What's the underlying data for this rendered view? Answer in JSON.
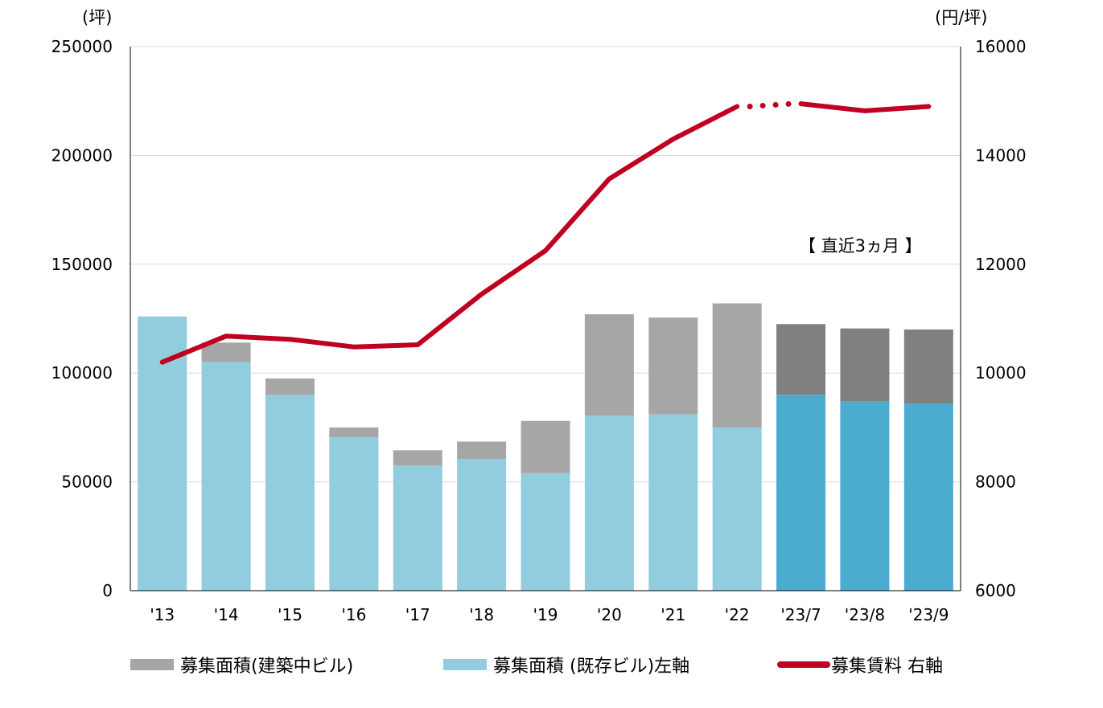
{
  "chart_data": {
    "type": "bar",
    "categories": [
      "'13",
      "'14",
      "'15",
      "'16",
      "'17",
      "'18",
      "'19",
      "'20",
      "'21",
      "'22",
      "'23/7",
      "'23/8",
      "'23/9"
    ],
    "left_axis": {
      "unit": "(坪)",
      "ylim": [
        0,
        250000
      ],
      "ticks": [
        "0",
        "50000",
        "100000",
        "150000",
        "200000",
        "250000"
      ]
    },
    "right_axis": {
      "unit": "(円/坪)",
      "ylim": [
        6000,
        16000
      ],
      "ticks": [
        "6000",
        "8000",
        "10000",
        "12000",
        "14000",
        "16000"
      ]
    },
    "annotation": "【 直近3ヵ月 】",
    "grid": true,
    "legend_position": "bottom",
    "series": [
      {
        "name": "募集面積(建築中ビル)",
        "kind": "bar-stacked",
        "axis": "left",
        "values": [
          0,
          9000,
          7500,
          4500,
          7000,
          8000,
          24000,
          46500,
          44500,
          57000,
          32500,
          33500,
          34000
        ],
        "color": "#a6a6a6",
        "recent_color": "#808080"
      },
      {
        "name": "募集面積 (既存ビル)左軸",
        "kind": "bar-stacked",
        "axis": "left",
        "values": [
          126000,
          105000,
          90000,
          70500,
          57500,
          60500,
          54000,
          80500,
          81000,
          75000,
          90000,
          87000,
          86000
        ],
        "color": "#92cddf",
        "recent_color": "#4bacd0"
      },
      {
        "name": "募集賃料 右軸",
        "kind": "line",
        "axis": "right",
        "values": [
          10200,
          10680,
          10620,
          10480,
          10520,
          11450,
          12250,
          13570,
          14300,
          14900,
          14950,
          14820,
          14900
        ],
        "color": "#c00020",
        "dotted_segment_after_index": 9
      }
    ]
  }
}
